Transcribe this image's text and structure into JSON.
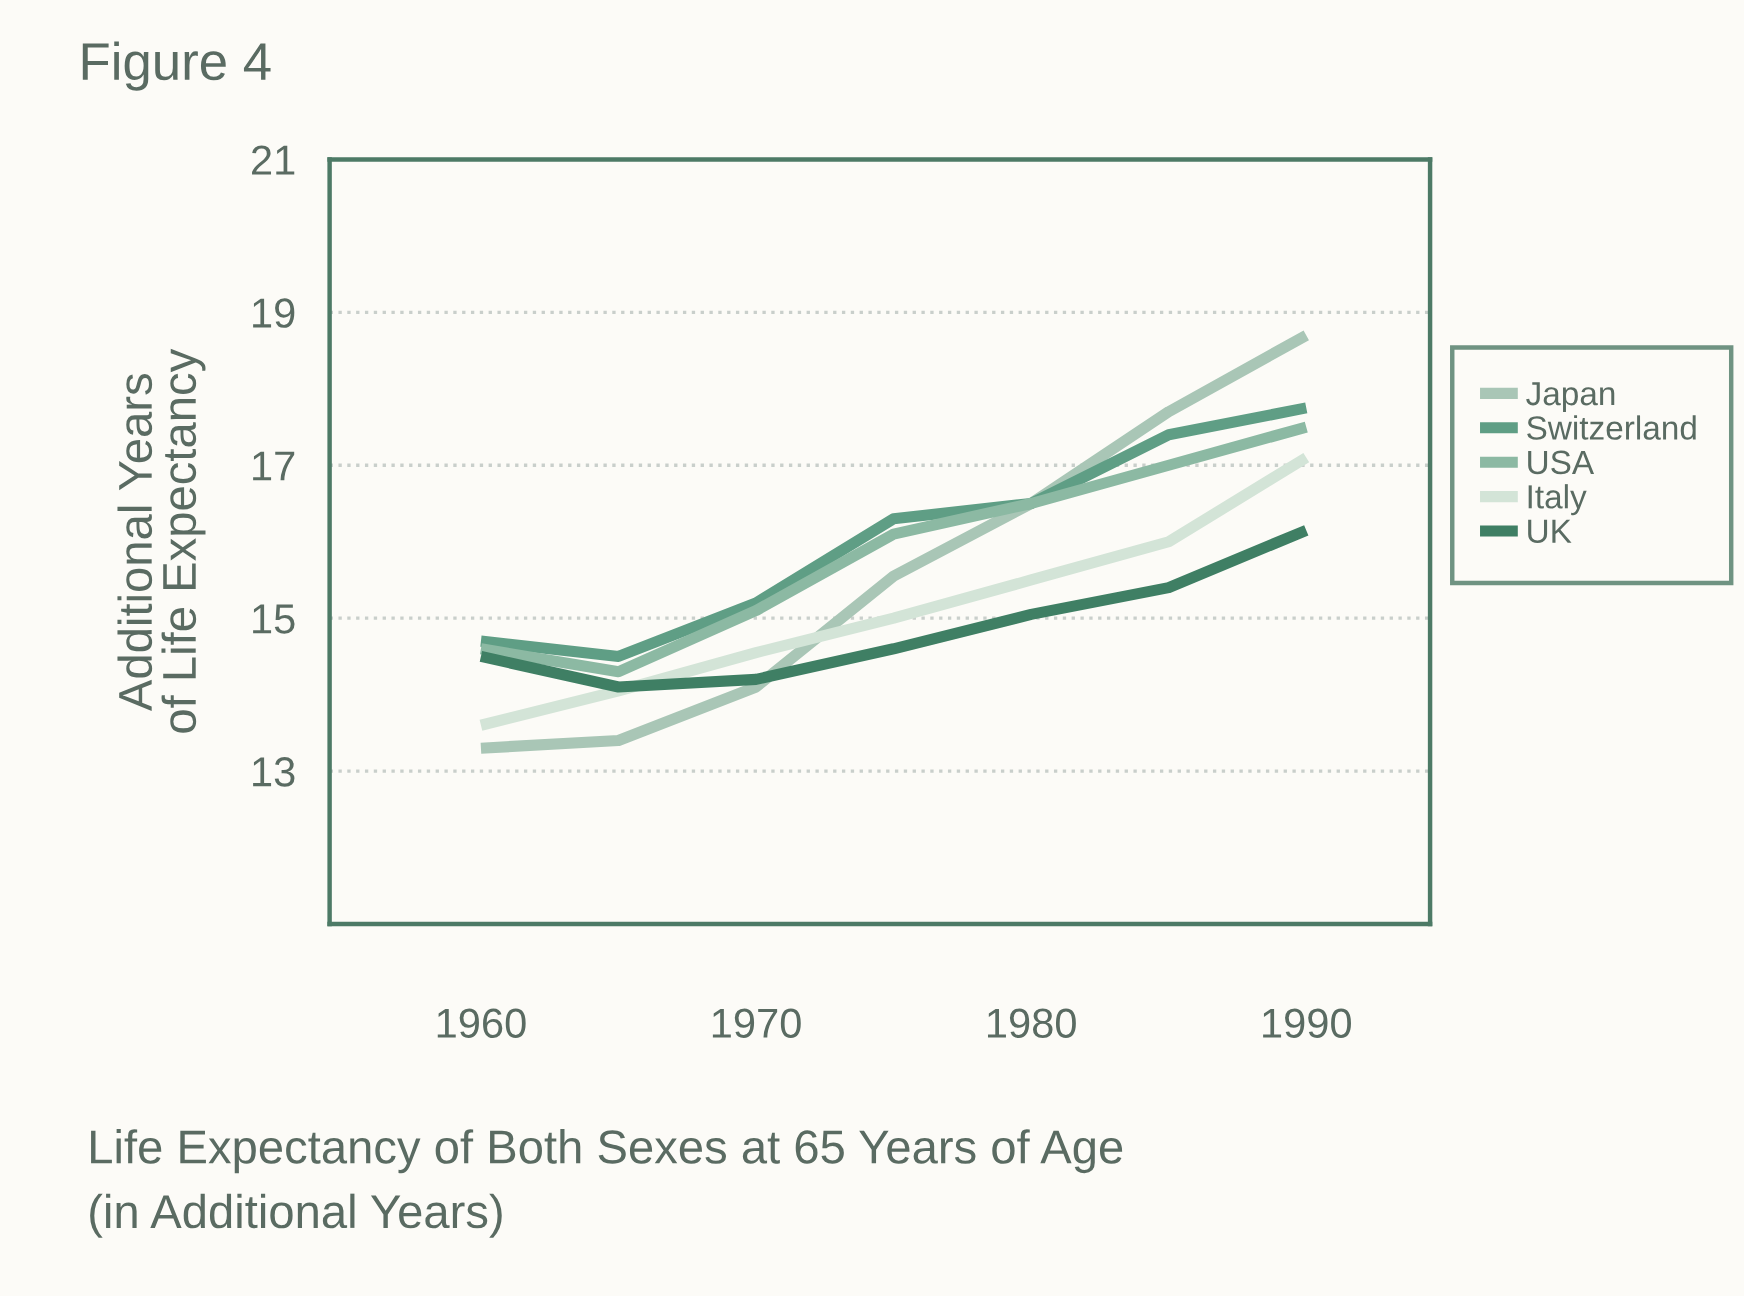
{
  "chart_data": {
    "type": "line",
    "title": "Figure 4",
    "xlabel": "Life Expectancy of Both Sexes at 65 Years of Age\n(in Additional Years)",
    "ylabel": "Additional Years\nof Life Expectancy",
    "x": [
      1960,
      1965,
      1970,
      1975,
      1980,
      1985,
      1990
    ],
    "series": [
      {
        "name": "Japan",
        "color": "#a9c6b6",
        "values": [
          13.3,
          13.4,
          14.1,
          15.55,
          16.5,
          17.7,
          18.7
        ]
      },
      {
        "name": "Switzerland",
        "color": "#5f9e85",
        "values": [
          14.7,
          14.5,
          15.2,
          16.3,
          16.5,
          17.4,
          17.75
        ]
      },
      {
        "name": "USA",
        "color": "#8cb9a3",
        "values": [
          14.6,
          14.3,
          15.1,
          16.1,
          16.5,
          17.0,
          17.5
        ]
      },
      {
        "name": "Italy",
        "color": "#d3e4d7",
        "values": [
          13.6,
          14.05,
          14.55,
          15.0,
          15.5,
          16.0,
          17.1
        ]
      },
      {
        "name": "UK",
        "color": "#3f7f64",
        "values": [
          14.5,
          14.1,
          14.2,
          14.6,
          15.05,
          15.4,
          16.15
        ]
      }
    ],
    "xlim": [
      1954.5,
      1994.5
    ],
    "xticks": [
      1960,
      1970,
      1980,
      1990
    ],
    "ylim": [
      11,
      21
    ],
    "yticks": [
      13,
      15,
      17,
      19,
      21
    ],
    "grid": "y",
    "legend": "right",
    "line_style": "solid"
  }
}
